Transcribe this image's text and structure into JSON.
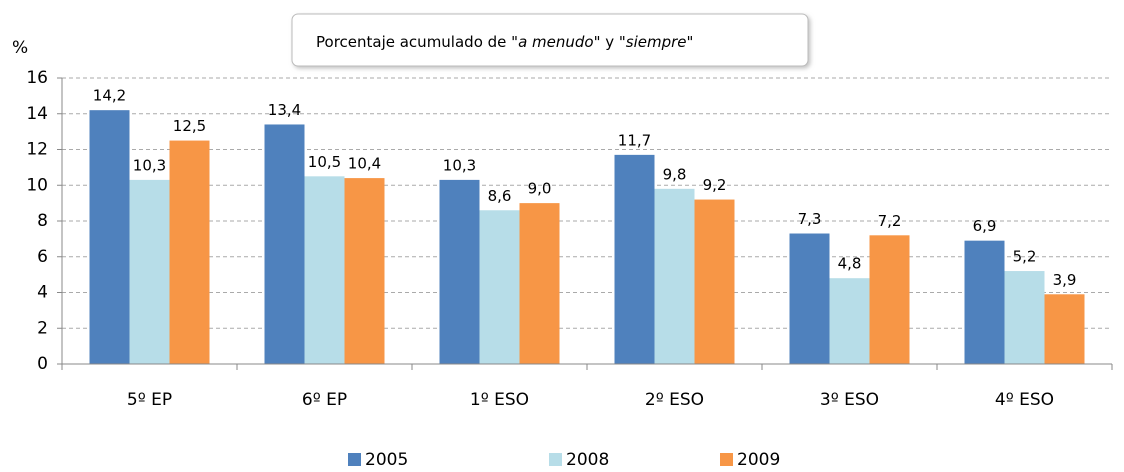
{
  "chart_data": {
    "type": "bar",
    "title": [
      "Porcentaje acumulado de \"",
      "a menudo",
      "\" y \"",
      "siempre",
      "\""
    ],
    "ylabel": "%",
    "categories": [
      "5º EP",
      "6º EP",
      "1º ESO",
      "2º ESO",
      "3º ESO",
      "4º ESO"
    ],
    "series": [
      {
        "name": "2005",
        "color": "#4f81bd",
        "values": [
          14.2,
          13.4,
          10.3,
          11.7,
          7.3,
          6.9
        ],
        "value_labels": [
          "14,2",
          "13,4",
          "10,3",
          "11,7",
          "7,3",
          "6,9"
        ]
      },
      {
        "name": "2008",
        "color": "#b7dde8",
        "values": [
          10.3,
          10.5,
          8.6,
          9.8,
          4.8,
          5.2
        ],
        "value_labels": [
          "10,3",
          "10,5",
          "8,6",
          "9,8",
          "4,8",
          "5,2"
        ]
      },
      {
        "name": "2009",
        "color": "#f79646",
        "values": [
          12.5,
          10.4,
          9.0,
          9.2,
          7.2,
          3.9
        ],
        "value_labels": [
          "12,5",
          "10,4",
          "9,0",
          "9,2",
          "7,2",
          "3,9"
        ]
      }
    ],
    "ylim": [
      0,
      16
    ],
    "yticks": [
      0,
      2,
      4,
      6,
      8,
      10,
      12,
      14,
      16
    ],
    "grid": true,
    "legend": "bottom"
  }
}
